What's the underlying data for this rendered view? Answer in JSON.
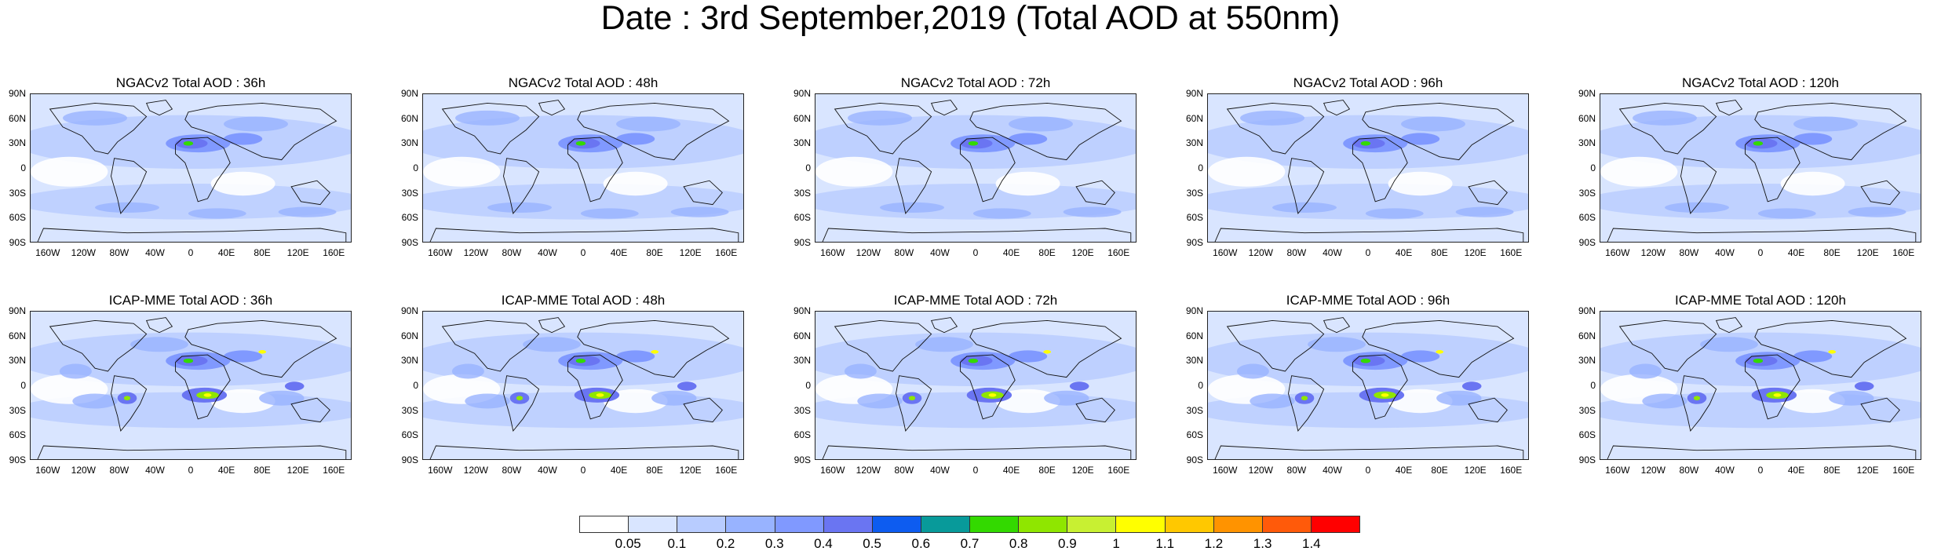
{
  "title": "Date : 3rd September,2019 (Total AOD at 550nm)",
  "panels": [
    {
      "title": "NGACv2 Total AOD : 36h",
      "model": "NGACv2",
      "lead": "36h"
    },
    {
      "title": "NGACv2 Total AOD : 48h",
      "model": "NGACv2",
      "lead": "48h"
    },
    {
      "title": "NGACv2 Total AOD : 72h",
      "model": "NGACv2",
      "lead": "72h"
    },
    {
      "title": "NGACv2 Total AOD : 96h",
      "model": "NGACv2",
      "lead": "96h"
    },
    {
      "title": "NGACv2 Total AOD : 120h",
      "model": "NGACv2",
      "lead": "120h"
    },
    {
      "title": "ICAP-MME Total AOD : 36h",
      "model": "ICAP-MME",
      "lead": "36h"
    },
    {
      "title": "ICAP-MME Total AOD : 48h",
      "model": "ICAP-MME",
      "lead": "48h"
    },
    {
      "title": "ICAP-MME Total AOD : 72h",
      "model": "ICAP-MME",
      "lead": "72h"
    },
    {
      "title": "ICAP-MME Total AOD : 96h",
      "model": "ICAP-MME",
      "lead": "96h"
    },
    {
      "title": "ICAP-MME Total AOD : 120h",
      "model": "ICAP-MME",
      "lead": "120h"
    }
  ],
  "lat_labels": [
    "90N",
    "60N",
    "30N",
    "0",
    "30S",
    "60S",
    "90S"
  ],
  "lon_labels": [
    "160W",
    "120W",
    "80W",
    "40W",
    "0",
    "40E",
    "80E",
    "120E",
    "160E"
  ],
  "colorbar": {
    "labels": [
      "0.05",
      "0.1",
      "0.2",
      "0.3",
      "0.4",
      "0.5",
      "0.6",
      "0.7",
      "0.8",
      "0.9",
      "1",
      "1.1",
      "1.2",
      "1.3",
      "1.4"
    ],
    "colors": [
      "#ffffff",
      "#d9e5ff",
      "#b8ccff",
      "#98b3ff",
      "#8099ff",
      "#6a75f2",
      "#0d5cf0",
      "#089a9a",
      "#33d900",
      "#8fe600",
      "#c8f032",
      "#ffff00",
      "#ffc800",
      "#ff9300",
      "#ff5a0a",
      "#ff0000"
    ]
  }
}
